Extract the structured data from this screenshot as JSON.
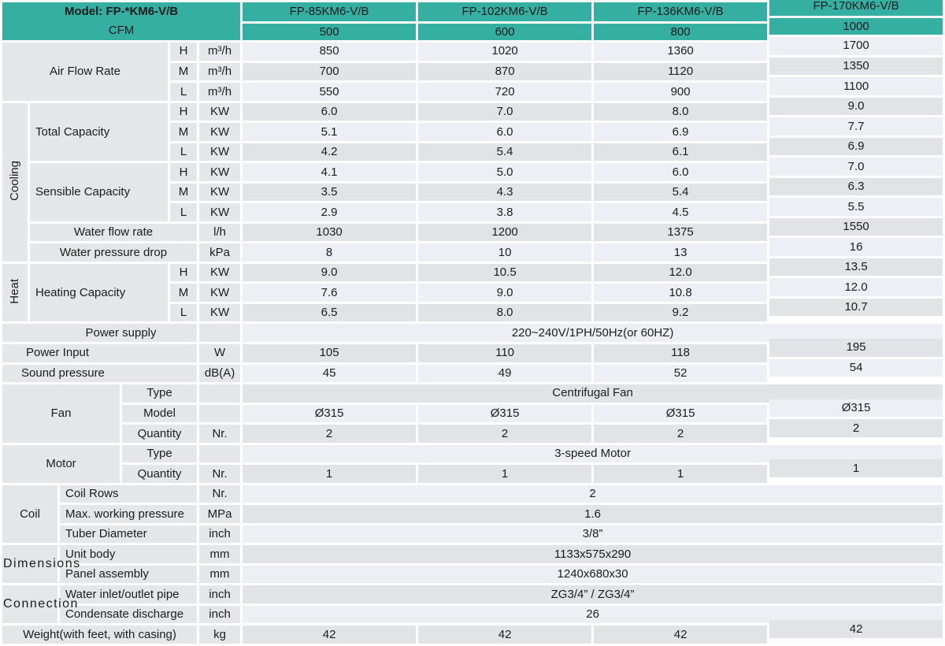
{
  "header": {
    "model_label": "Model: FP-*KM6-V/B",
    "cfm_label": "CFM",
    "models": [
      "FP-85KM6-V/B",
      "FP-102KM6-V/B",
      "FP-136KM6-V/B",
      "FP-170KM6-V/B"
    ],
    "cfm_values": [
      "500",
      "600",
      "800",
      "1000"
    ]
  },
  "colors": {
    "teal": "#34afa2",
    "row_light": "#ecf0f4",
    "row_gray": "#e2e3e7",
    "label_bg": "#e5e6e9",
    "text": "#1c1c1c"
  },
  "table": {
    "rows": [
      {
        "cells": [
          {
            "t": "Air Flow Rate",
            "k": "lab cc",
            "c": 4,
            "r": 3
          },
          {
            "t": "H",
            "k": "sub"
          },
          {
            "t": "m³/h",
            "k": "unit"
          },
          {
            "t": "850",
            "k": "v"
          },
          {
            "t": "1020",
            "k": "v"
          },
          {
            "t": "1360",
            "k": "v"
          },
          {
            "t": "1700",
            "k": "v c4"
          }
        ]
      },
      {
        "cells": [
          {
            "t": "M",
            "k": "sub"
          },
          {
            "t": "m³/h",
            "k": "unit"
          },
          {
            "t": "700",
            "k": "v"
          },
          {
            "t": "870",
            "k": "v"
          },
          {
            "t": "1120",
            "k": "v"
          },
          {
            "t": "1350",
            "k": "v c4"
          }
        ]
      },
      {
        "cells": [
          {
            "t": "L",
            "k": "sub"
          },
          {
            "t": "m³/h",
            "k": "unit"
          },
          {
            "t": "550",
            "k": "v"
          },
          {
            "t": "720",
            "k": "v"
          },
          {
            "t": "900",
            "k": "v"
          },
          {
            "t": "1100",
            "k": "v c4"
          }
        ]
      },
      {
        "cells": [
          {
            "t": "Cooling",
            "k": "vg",
            "r": 8
          },
          {
            "t": "Total Capacity",
            "k": "lab",
            "c": 3,
            "r": 3
          },
          {
            "t": "H",
            "k": "sub"
          },
          {
            "t": "KW",
            "k": "unit"
          },
          {
            "t": "6.0",
            "k": "v"
          },
          {
            "t": "7.0",
            "k": "v"
          },
          {
            "t": "8.0",
            "k": "v"
          },
          {
            "t": "9.0",
            "k": "v c4"
          }
        ]
      },
      {
        "cells": [
          {
            "t": "M",
            "k": "sub"
          },
          {
            "t": "KW",
            "k": "unit"
          },
          {
            "t": "5.1",
            "k": "v"
          },
          {
            "t": "6.0",
            "k": "v"
          },
          {
            "t": "6.9",
            "k": "v"
          },
          {
            "t": "7.7",
            "k": "v c4"
          }
        ]
      },
      {
        "cells": [
          {
            "t": "L",
            "k": "sub"
          },
          {
            "t": "KW",
            "k": "unit"
          },
          {
            "t": "4.2",
            "k": "v"
          },
          {
            "t": "5.4",
            "k": "v"
          },
          {
            "t": "6.1",
            "k": "v"
          },
          {
            "t": "6.9",
            "k": "v c4"
          }
        ]
      },
      {
        "cells": [
          {
            "t": "Sensible Capacity",
            "k": "lab",
            "c": 3,
            "r": 3
          },
          {
            "t": "H",
            "k": "sub"
          },
          {
            "t": "KW",
            "k": "unit"
          },
          {
            "t": "4.1",
            "k": "v"
          },
          {
            "t": "5.0",
            "k": "v"
          },
          {
            "t": "6.0",
            "k": "v"
          },
          {
            "t": "7.0",
            "k": "v c4"
          }
        ]
      },
      {
        "cells": [
          {
            "t": "M",
            "k": "sub"
          },
          {
            "t": "KW",
            "k": "unit"
          },
          {
            "t": "3.5",
            "k": "v"
          },
          {
            "t": "4.3",
            "k": "v"
          },
          {
            "t": "5.4",
            "k": "v"
          },
          {
            "t": "6.3",
            "k": "v c4"
          }
        ]
      },
      {
        "cells": [
          {
            "t": "L",
            "k": "sub"
          },
          {
            "t": "KW",
            "k": "unit"
          },
          {
            "t": "2.9",
            "k": "v"
          },
          {
            "t": "3.8",
            "k": "v"
          },
          {
            "t": "4.5",
            "k": "v"
          },
          {
            "t": "5.5",
            "k": "v c4"
          }
        ]
      },
      {
        "cells": [
          {
            "t": "Water flow rate",
            "k": "lab cc",
            "c": 4
          },
          {
            "t": "l/h",
            "k": "unit"
          },
          {
            "t": "1030",
            "k": "v"
          },
          {
            "t": "1200",
            "k": "v"
          },
          {
            "t": "1375",
            "k": "v"
          },
          {
            "t": "1550",
            "k": "v c4"
          }
        ]
      },
      {
        "cells": [
          {
            "t": "Water pressure drop",
            "k": "lab cc",
            "c": 4
          },
          {
            "t": "kPa",
            "k": "unit"
          },
          {
            "t": "8",
            "k": "v"
          },
          {
            "t": "10",
            "k": "v"
          },
          {
            "t": "13",
            "k": "v"
          },
          {
            "t": "16",
            "k": "v c4"
          }
        ]
      },
      {
        "cells": [
          {
            "t": "Heat",
            "k": "vg",
            "r": 3
          },
          {
            "t": "Heating Capacity",
            "k": "lab",
            "c": 3,
            "r": 3
          },
          {
            "t": "H",
            "k": "sub"
          },
          {
            "t": "KW",
            "k": "unit"
          },
          {
            "t": "9.0",
            "k": "v"
          },
          {
            "t": "10.5",
            "k": "v"
          },
          {
            "t": "12.0",
            "k": "v"
          },
          {
            "t": "13.5",
            "k": "v c4"
          }
        ]
      },
      {
        "cells": [
          {
            "t": "M",
            "k": "sub"
          },
          {
            "t": "KW",
            "k": "unit"
          },
          {
            "t": "7.6",
            "k": "v"
          },
          {
            "t": "9.0",
            "k": "v"
          },
          {
            "t": "10.8",
            "k": "v"
          },
          {
            "t": "12.0",
            "k": "v c4"
          }
        ]
      },
      {
        "cells": [
          {
            "t": "L",
            "k": "sub"
          },
          {
            "t": "KW",
            "k": "unit"
          },
          {
            "t": "6.5",
            "k": "v"
          },
          {
            "t": "8.0",
            "k": "v"
          },
          {
            "t": "9.2",
            "k": "v"
          },
          {
            "t": "10.7",
            "k": "v c4"
          }
        ]
      },
      {
        "cells": [
          {
            "t": "Power supply",
            "k": "lab cc ps",
            "c": 5
          },
          {
            "t": "",
            "k": "unit"
          },
          {
            "t": "220~240V/1PH/50Hz(or 60HZ)",
            "k": "mv",
            "c": 4
          }
        ]
      },
      {
        "cells": [
          {
            "t": "Power Input",
            "k": "lab pad30",
            "c": 5
          },
          {
            "t": "W",
            "k": "unit"
          },
          {
            "t": "105",
            "k": "v"
          },
          {
            "t": "110",
            "k": "v"
          },
          {
            "t": "118",
            "k": "v"
          },
          {
            "t": "195",
            "k": "v c4"
          }
        ]
      },
      {
        "cells": [
          {
            "t": "Sound pressure",
            "k": "lab pad24",
            "c": 5
          },
          {
            "t": "dB(A)",
            "k": "unit"
          },
          {
            "t": "45",
            "k": "v"
          },
          {
            "t": "49",
            "k": "v"
          },
          {
            "t": "52",
            "k": "v"
          },
          {
            "t": "54",
            "k": "v c4"
          }
        ]
      },
      {
        "cells": [
          {
            "t": "Fan",
            "k": "g",
            "c": 3,
            "r": 3
          },
          {
            "t": "Type",
            "k": "sub",
            "c": 2
          },
          {
            "t": "",
            "k": "unit"
          },
          {
            "t": "Centrifugal Fan",
            "k": "mv",
            "c": 4
          }
        ]
      },
      {
        "cells": [
          {
            "t": "Model",
            "k": "sub",
            "c": 2
          },
          {
            "t": "",
            "k": "unit"
          },
          {
            "t": "Ø315",
            "k": "v"
          },
          {
            "t": "Ø315",
            "k": "v"
          },
          {
            "t": "Ø315",
            "k": "v"
          },
          {
            "t": "Ø315",
            "k": "v c4"
          }
        ]
      },
      {
        "cells": [
          {
            "t": "Quantity",
            "k": "sub",
            "c": 2
          },
          {
            "t": "Nr.",
            "k": "unit"
          },
          {
            "t": "2",
            "k": "v"
          },
          {
            "t": "2",
            "k": "v"
          },
          {
            "t": "2",
            "k": "v"
          },
          {
            "t": "2",
            "k": "v c4"
          }
        ]
      },
      {
        "cells": [
          {
            "t": "Motor",
            "k": "g",
            "c": 3,
            "r": 2
          },
          {
            "t": "Type",
            "k": "sub",
            "c": 2
          },
          {
            "t": "",
            "k": "unit"
          },
          {
            "t": "3-speed Motor",
            "k": "mv",
            "c": 4
          }
        ]
      },
      {
        "cells": [
          {
            "t": "Quantity",
            "k": "sub",
            "c": 2
          },
          {
            "t": "Nr.",
            "k": "unit"
          },
          {
            "t": "1",
            "k": "v"
          },
          {
            "t": "1",
            "k": "v"
          },
          {
            "t": "1",
            "k": "v"
          },
          {
            "t": "1",
            "k": "v c4"
          }
        ]
      },
      {
        "cells": [
          {
            "t": "Coil",
            "k": "g",
            "c": 2,
            "r": 3
          },
          {
            "t": "Coil Rows",
            "k": "lab",
            "c": 3
          },
          {
            "t": "Nr.",
            "k": "unit"
          },
          {
            "t": "2",
            "k": "mv",
            "c": 4
          }
        ]
      },
      {
        "cells": [
          {
            "t": "Max. working pressure",
            "k": "lab",
            "c": 3
          },
          {
            "t": "MPa",
            "k": "unit"
          },
          {
            "t": "1.6",
            "k": "mv",
            "c": 4
          }
        ]
      },
      {
        "cells": [
          {
            "t": "Tuber Diameter",
            "k": "lab",
            "c": 3
          },
          {
            "t": "inch",
            "k": "unit"
          },
          {
            "t": "3/8”",
            "k": "mv",
            "c": 4
          }
        ]
      },
      {
        "cells": [
          {
            "t": "Dimensions",
            "k": "g ovf",
            "c": 2,
            "r": 2
          },
          {
            "t": "Unit body",
            "k": "lab",
            "c": 3
          },
          {
            "t": "mm",
            "k": "unit"
          },
          {
            "t": "1133x575x290",
            "k": "mv",
            "c": 4
          }
        ]
      },
      {
        "cells": [
          {
            "t": "Panel assembly",
            "k": "lab",
            "c": 3
          },
          {
            "t": "mm",
            "k": "unit"
          },
          {
            "t": "1240x680x30",
            "k": "mv",
            "c": 4
          }
        ]
      },
      {
        "cells": [
          {
            "t": "Connection",
            "k": "g ovf",
            "c": 2,
            "r": 2
          },
          {
            "t": "Water inlet/outlet pipe",
            "k": "lab",
            "c": 3
          },
          {
            "t": "inch",
            "k": "unit"
          },
          {
            "t": "ZG3/4” / ZG3/4”",
            "k": "mv",
            "c": 4
          }
        ]
      },
      {
        "cells": [
          {
            "t": "Condensate discharge",
            "k": "lab",
            "c": 3
          },
          {
            "t": "inch",
            "k": "unit"
          },
          {
            "t": "26",
            "k": "mv",
            "c": 4
          }
        ]
      },
      {
        "cells": [
          {
            "t": "Weight(with feet, with casing)",
            "k": "lab cc",
            "c": 5
          },
          {
            "t": "kg",
            "k": "unit"
          },
          {
            "t": "42",
            "k": "v"
          },
          {
            "t": "42",
            "k": "v"
          },
          {
            "t": "42",
            "k": "v"
          },
          {
            "t": "42",
            "k": "v c4"
          }
        ]
      }
    ]
  }
}
